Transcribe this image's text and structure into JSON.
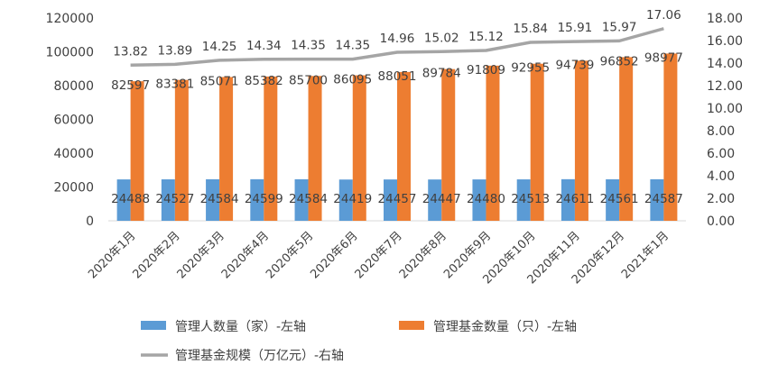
{
  "chart_data": {
    "type": "bar",
    "categories": [
      "2020年1月",
      "2020年2月",
      "2020年3月",
      "2020年4月",
      "2020年5月",
      "2020年6月",
      "2020年7月",
      "2020年8月",
      "2020年9月",
      "2020年10月",
      "2020年11月",
      "2020年12月",
      "2021年1月"
    ],
    "series": [
      {
        "name": "管理人数量（家）-左轴",
        "type": "bar",
        "axis": "left",
        "color": "#5b9bd5",
        "values": [
          24488,
          24527,
          24584,
          24599,
          24584,
          24419,
          24457,
          24447,
          24480,
          24513,
          24611,
          24561,
          24587
        ]
      },
      {
        "name": "管理基金数量（只）-左轴",
        "type": "bar",
        "axis": "left",
        "color": "#ed7d31",
        "values": [
          82597,
          83381,
          85071,
          85382,
          85700,
          86095,
          88051,
          89784,
          91809,
          92955,
          94739,
          96852,
          98977
        ]
      },
      {
        "name": "管理基金规模（万亿元）-右轴",
        "type": "line",
        "axis": "right",
        "color": "#a5a5a5",
        "values": [
          13.82,
          13.89,
          14.25,
          14.34,
          14.35,
          14.35,
          14.96,
          15.02,
          15.12,
          15.84,
          15.91,
          15.97,
          17.06
        ]
      }
    ],
    "left_axis": {
      "ylim": [
        0,
        120000
      ],
      "ticks": [
        "0",
        "20000",
        "40000",
        "60000",
        "80000",
        "100000",
        "120000"
      ]
    },
    "right_axis": {
      "ylim": [
        0,
        18
      ],
      "ticks": [
        "0.00",
        "2.00",
        "4.00",
        "6.00",
        "8.00",
        "10.00",
        "12.00",
        "14.00",
        "16.00",
        "18.00"
      ]
    },
    "grid": false,
    "legend_position": "bottom"
  }
}
